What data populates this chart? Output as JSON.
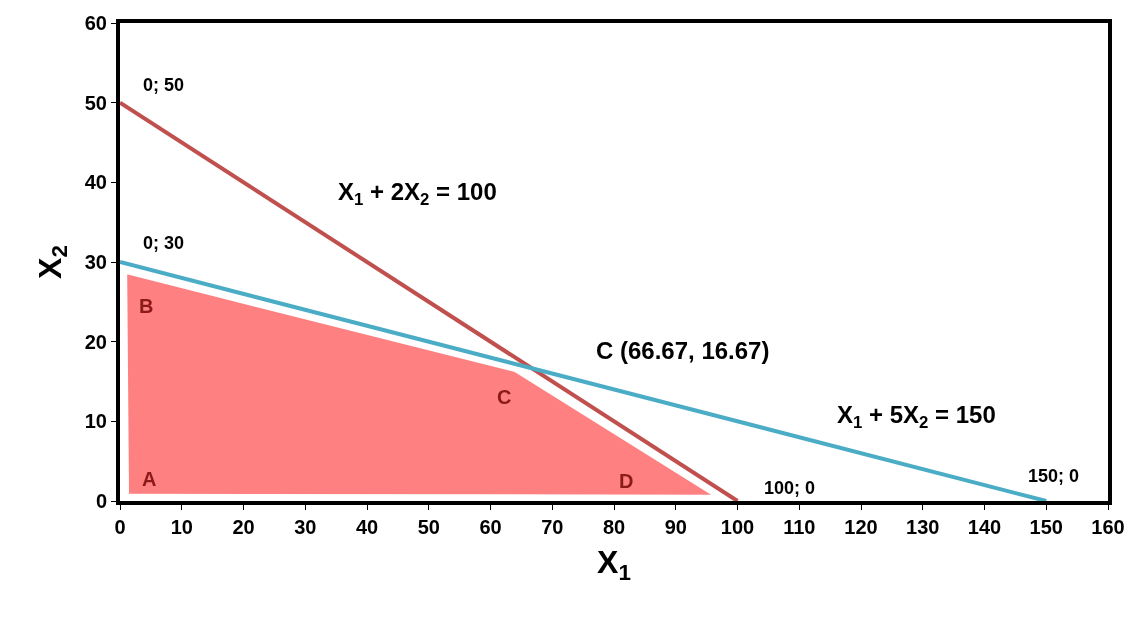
{
  "chart_data": {
    "type": "line",
    "xlabel": "X$_{1}$",
    "ylabel": "X$_{2}$",
    "xlim": [
      0,
      160
    ],
    "xticks": [
      0,
      10,
      20,
      30,
      40,
      50,
      60,
      70,
      80,
      90,
      100,
      110,
      120,
      130,
      140,
      150,
      160
    ],
    "ylim": [
      0,
      60
    ],
    "yticks": [
      0,
      10,
      20,
      30,
      40,
      50,
      60
    ],
    "series": [
      {
        "type": "area",
        "color": "#ff8080",
        "x": [
          1.3,
          1,
          64,
          96
        ],
        "values": [
          0.9,
          28.6,
          16.3,
          0.8
        ]
      },
      {
        "color": "#c0504d",
        "x": [
          0,
          100
        ],
        "values": [
          50,
          0
        ]
      },
      {
        "color": "#4bacc6",
        "x": [
          0,
          150
        ],
        "values": [
          30,
          0
        ]
      }
    ],
    "annotations": [
      {
        "text": "0; 50",
        "x": 0,
        "y": 50
      },
      {
        "text": "0; 30",
        "x": 0,
        "y": 30
      },
      {
        "text": "X$_{1}$ + 2X$_{2}$ = 100",
        "x": 30,
        "y": 35
      },
      {
        "text": "C (66.67, 16.67)",
        "x": 66.67,
        "y": 16.67
      },
      {
        "text": "X$_{1}$ + 5X$_{2}$ = 150",
        "x": 120,
        "y": 6
      },
      {
        "text": "100; 0",
        "x": 100,
        "y": 0
      },
      {
        "text": "150; 0",
        "x": 150,
        "y": 0
      },
      {
        "text": "B",
        "x": 1,
        "y": 28.6
      },
      {
        "text": "C",
        "x": 64,
        "y": 16.3
      },
      {
        "text": "A",
        "x": 1.3,
        "y": 0.9
      },
      {
        "text": "D",
        "x": 82,
        "y": 0.8
      }
    ]
  }
}
